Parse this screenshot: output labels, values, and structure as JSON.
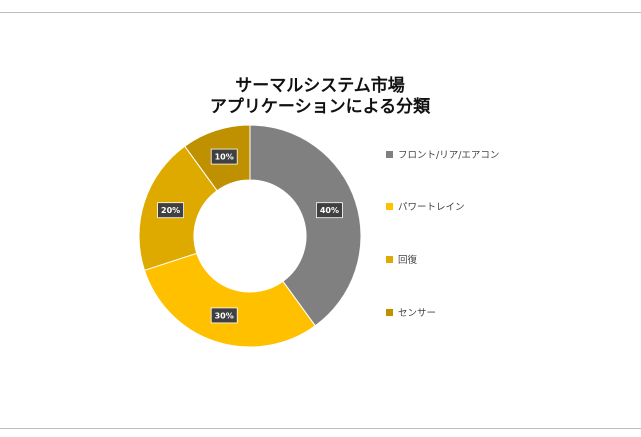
{
  "chart_data": {
    "type": "pie",
    "variant": "donut",
    "title_lines": [
      "サーマルシステム市場",
      "アプリケーションによる分類"
    ],
    "categories": [
      "フロント/リア/エアコン",
      "パワートレイン",
      "回復",
      "センサー"
    ],
    "values": [
      40,
      30,
      20,
      10
    ],
    "data_labels": [
      "40%",
      "30%",
      "20%",
      "10%"
    ],
    "colors": [
      "#808080",
      "#FFC000",
      "#DFAA00",
      "#BF9000"
    ],
    "legend_position": "right",
    "start_angle": "12 o'clock, clockwise"
  }
}
